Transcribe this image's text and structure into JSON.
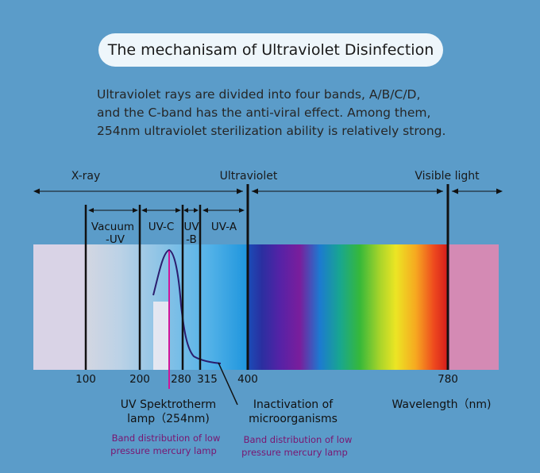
{
  "title": "The mechanisam of Ultraviolet Disinfection",
  "intro": [
    "Ultraviolet rays are divided into four bands, A/B/C/D,",
    "and the C-band has the anti-viral effect. Among them,",
    "254nm ultraviolet sterilization ability is relatively strong."
  ],
  "regions": {
    "xray": "X-ray",
    "ultraviolet": "Ultraviolet",
    "visible": "Visible light"
  },
  "bands": {
    "vacuum_uv_line1": "Vacuum",
    "vacuum_uv_line2": "-UV",
    "uvc": "UV-C",
    "uvb_line1": "UV",
    "uvb_line2": "-B",
    "uva": "UV-A"
  },
  "wavelength_ticks": [
    "100",
    "200",
    "280",
    "315",
    "400",
    "780"
  ],
  "captions": {
    "lamp_line1": "UV Spektrotherm",
    "lamp_line2": "lamp（254nm)",
    "inactivation_line1": "Inactivation of",
    "inactivation_line2": "microorganisms",
    "wavelength_unit": "Wavelength（nm)",
    "band_dist_1_line1": "Band distribution of low",
    "band_dist_1_line2": "pressure mercury lamp",
    "band_dist_2_line1": "Band distribution of low",
    "band_dist_2_line2": "pressure mercury lamp"
  },
  "colors": {
    "background": "#5b9cc9",
    "lamp_line": "#d0159a",
    "curve": "#2b1d6e"
  }
}
